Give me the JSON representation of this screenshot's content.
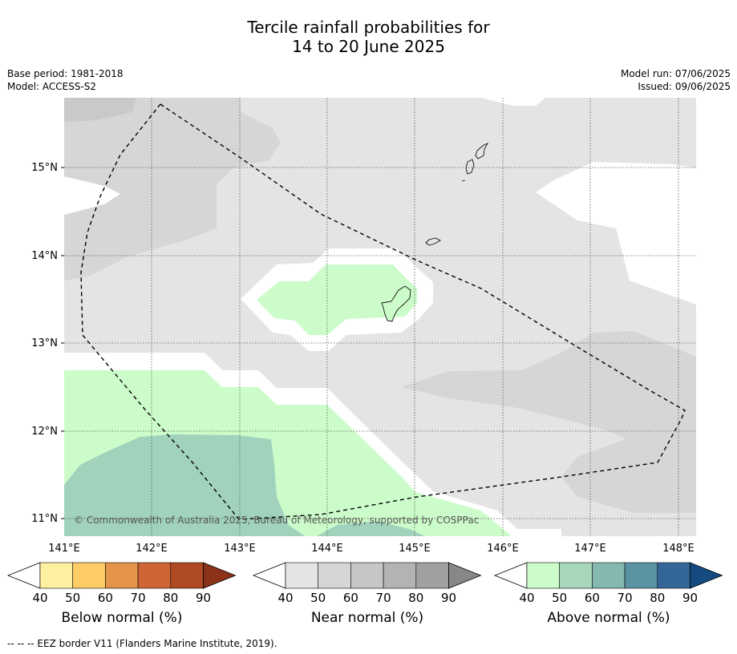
{
  "title": {
    "line1": "Tercile rainfall probabilities for",
    "line2": "14 to 20 June 2025"
  },
  "meta": {
    "base_period": "Base period: 1981-2018",
    "model": "Model: ACCESS-S2",
    "model_run": "Model run: 07/06/2025",
    "issued": "Issued: 09/06/2025"
  },
  "map": {
    "lon_labels": [
      "141°E",
      "142°E",
      "143°E",
      "144°E",
      "145°E",
      "146°E",
      "147°E",
      "148°E"
    ],
    "lat_labels": [
      "15°N",
      "14°N",
      "13°N",
      "12°N",
      "11°N"
    ],
    "copyright": "© Commonwealth of Australia 2025, Bureau of Meteorology, supported by COSPPac"
  },
  "colorbars": [
    {
      "name": "below-normal",
      "label": "Below normal (%)",
      "ticks": [
        "40",
        "50",
        "60",
        "70",
        "80",
        "90"
      ],
      "colors": [
        "#fff0a0",
        "#fdcc66",
        "#e3944a",
        "#cf6535",
        "#b04a25",
        "#8b3218"
      ]
    },
    {
      "name": "near-normal",
      "label": "Near normal (%)",
      "ticks": [
        "40",
        "50",
        "60",
        "70",
        "80",
        "90"
      ],
      "colors": [
        "#e4e4e4",
        "#d6d6d6",
        "#c6c6c6",
        "#b3b3b3",
        "#a0a0a0",
        "#878787"
      ]
    },
    {
      "name": "above-normal",
      "label": "Above normal (%)",
      "ticks": [
        "40",
        "50",
        "60",
        "70",
        "80",
        "90"
      ],
      "colors": [
        "#ccfcca",
        "#a8d8bc",
        "#85b8b0",
        "#5c93a4",
        "#346697",
        "#144a80"
      ]
    }
  ],
  "footnote": "--  --  -- EEZ border V11 (Flanders Marine Institute, 2019)."
}
